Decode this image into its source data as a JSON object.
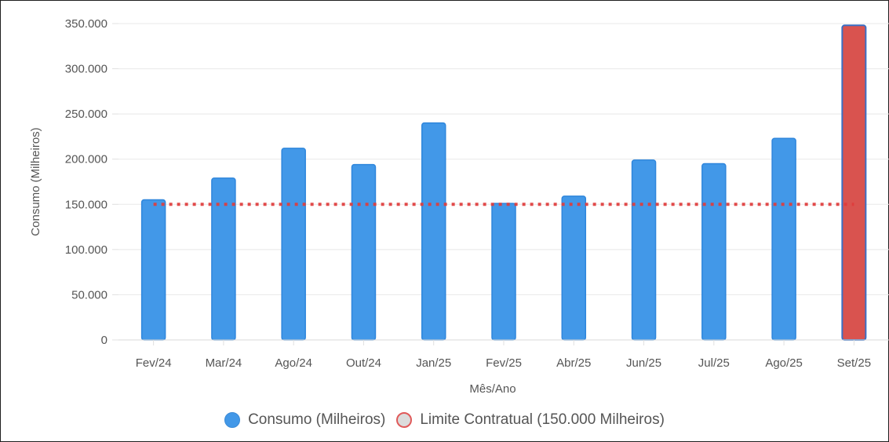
{
  "chart_data": {
    "type": "bar",
    "title": "",
    "xlabel": "Mês/Ano",
    "ylabel": "Consumo (Milheiros)",
    "ylim": [
      0,
      350000
    ],
    "yticks": [
      0,
      50000,
      100000,
      150000,
      200000,
      250000,
      300000,
      350000
    ],
    "ytick_labels": [
      "0",
      "50.000",
      "100.000",
      "150.000",
      "200.000",
      "250.000",
      "300.000",
      "350.000"
    ],
    "categories": [
      "Fev/24",
      "Mar/24",
      "Ago/24",
      "Out/24",
      "Jan/25",
      "Fev/25",
      "Abr/25",
      "Jun/25",
      "Jul/25",
      "Ago/25",
      "Set/25"
    ],
    "series": [
      {
        "name": "Consumo (Milheiros)",
        "type": "bar",
        "values": [
          155000,
          179000,
          212000,
          194000,
          240000,
          151000,
          159000,
          199000,
          195000,
          223000,
          348000
        ],
        "color": "#4298e8",
        "highlight_color": "#d9534f",
        "highlight_index": 10
      },
      {
        "name": "Limite Contratual (150.000 Milheiros)",
        "type": "line",
        "style": "dotted",
        "value": 150000,
        "color": "#e03c3c"
      }
    ],
    "grid": true,
    "legend_position": "bottom"
  }
}
